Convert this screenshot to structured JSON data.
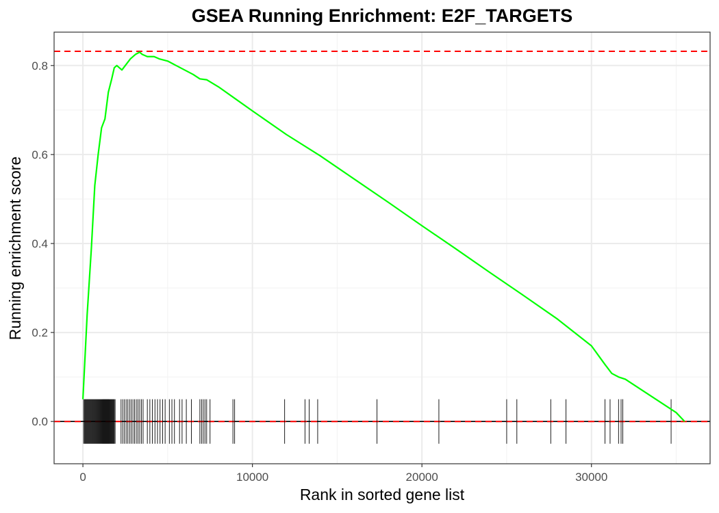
{
  "chart_data": {
    "type": "line",
    "title": "GSEA Running Enrichment: E2F_TARGETS",
    "xlabel": "Rank in sorted gene list",
    "ylabel": "Running enrichment score",
    "xlim": [
      -1700,
      37000
    ],
    "ylim": [
      -0.095,
      0.875
    ],
    "x_ticks": [
      0,
      10000,
      20000,
      30000
    ],
    "x_tick_labels": [
      "0",
      "10000",
      "20000",
      "30000"
    ],
    "y_ticks": [
      0.0,
      0.2,
      0.4,
      0.6,
      0.8
    ],
    "y_tick_labels": [
      "0.0",
      "0.2",
      "0.4",
      "0.6",
      "0.8"
    ],
    "grid": true,
    "series": [
      {
        "color": "#00ff00",
        "x": [
          0,
          250,
          500,
          700,
          900,
          1100,
          1300,
          1500,
          1700,
          1850,
          2000,
          2300,
          2500,
          2800,
          3100,
          3350,
          3500,
          3800,
          4200,
          4500,
          5000,
          5500,
          6000,
          6500,
          6900,
          7300,
          8000,
          9000,
          10000,
          12000,
          14000,
          16000,
          18000,
          20000,
          22000,
          24000,
          26000,
          28000,
          30000,
          30800,
          31200,
          31600,
          32000,
          33000,
          34000,
          35000,
          35500
        ],
        "values": [
          0.05,
          0.24,
          0.39,
          0.53,
          0.6,
          0.66,
          0.68,
          0.74,
          0.77,
          0.795,
          0.8,
          0.79,
          0.8,
          0.815,
          0.825,
          0.83,
          0.825,
          0.82,
          0.82,
          0.815,
          0.81,
          0.8,
          0.79,
          0.78,
          0.77,
          0.768,
          0.752,
          0.725,
          0.698,
          0.645,
          0.597,
          0.545,
          0.493,
          0.44,
          0.388,
          0.335,
          0.283,
          0.23,
          0.17,
          0.128,
          0.108,
          0.1,
          0.095,
          0.07,
          0.045,
          0.02,
          0.0
        ]
      }
    ],
    "reference_lines": [
      {
        "axis": "y",
        "value": 0.832,
        "color": "#ff0000",
        "style": "dashed"
      },
      {
        "axis": "y",
        "value": 0.0,
        "color": "#000000",
        "style": "solid"
      },
      {
        "axis": "y",
        "value": 0.0,
        "color": "#ff0000",
        "style": "dashed"
      }
    ],
    "rug": {
      "color": "#000000",
      "ymin": -0.05,
      "ymax": 0.05,
      "positions": [
        40,
        90,
        130,
        170,
        210,
        250,
        290,
        330,
        370,
        410,
        450,
        490,
        530,
        570,
        610,
        650,
        690,
        730,
        770,
        810,
        850,
        890,
        930,
        970,
        1010,
        1050,
        1090,
        1130,
        1170,
        1210,
        1250,
        1290,
        1330,
        1370,
        1410,
        1450,
        1490,
        1530,
        1570,
        1610,
        1650,
        1690,
        1730,
        1770,
        1810,
        1850,
        1900,
        2250,
        2350,
        2450,
        2550,
        2650,
        2750,
        2850,
        2950,
        3050,
        3150,
        3250,
        3350,
        3450,
        3550,
        3800,
        3950,
        4100,
        4250,
        4400,
        4550,
        4700,
        4850,
        5100,
        5250,
        5400,
        5700,
        5850,
        6100,
        6400,
        6900,
        7000,
        7100,
        7200,
        7300,
        7500,
        8850,
        8950,
        11900,
        13100,
        13350,
        13850,
        17350,
        21000,
        25000,
        25600,
        27600,
        28500,
        30800,
        31100,
        31600,
        31750,
        31850,
        34700
      ]
    }
  }
}
